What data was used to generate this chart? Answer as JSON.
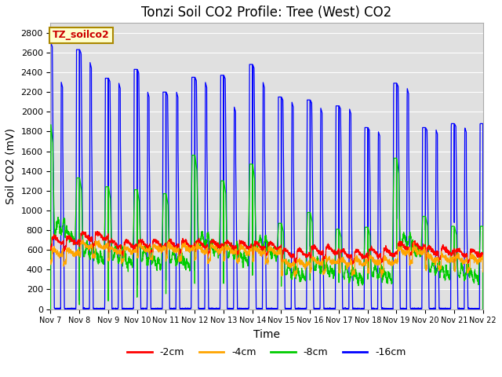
{
  "title": "Tonzi Soil CO2 Profile: Tree (West) CO2",
  "ylabel": "Soil CO2 (mV)",
  "xlabel": "Time",
  "watermark_text": "TZ_soilco2",
  "legend_labels": [
    "-2cm",
    "-4cm",
    "-8cm",
    "-16cm"
  ],
  "legend_colors": [
    "#ff0000",
    "#ffa500",
    "#00cc00",
    "#0000ff"
  ],
  "ylim": [
    0,
    2900
  ],
  "yticks": [
    0,
    200,
    400,
    600,
    800,
    1000,
    1200,
    1400,
    1600,
    1800,
    2000,
    2200,
    2400,
    2600,
    2800
  ],
  "xtick_labels": [
    "Nov 7",
    "Nov 8",
    "Nov 9",
    "Nov 10",
    "Nov 11",
    "Nov 12",
    "Nov 13",
    "Nov 14",
    "Nov 15",
    "Nov 16",
    "Nov 17",
    "Nov 18",
    "Nov 19",
    "Nov 20",
    "Nov 21",
    "Nov 22"
  ],
  "bg_color": "#e0e0e0",
  "grid_color": "#ffffff",
  "title_fontsize": 12,
  "axis_fontsize": 10,
  "tick_fontsize": 8,
  "blue_peaks": [
    2700,
    2630,
    2340,
    2430,
    2200,
    2350,
    2370,
    2480,
    2150,
    2120,
    2060,
    1840,
    2290,
    1840,
    1880,
    1680
  ],
  "blue_second_peaks": [
    2300,
    2500,
    2290,
    2200,
    2200,
    2300,
    2050,
    2300,
    2100,
    2040,
    2030,
    1800,
    2240,
    1820,
    1840,
    0
  ],
  "green_peaks": [
    1870,
    1330,
    1240,
    1210,
    1170,
    1560,
    1300,
    1470,
    870,
    980,
    810,
    830,
    1530,
    940,
    840,
    0
  ],
  "red_base": [
    700,
    740,
    660,
    660,
    660,
    660,
    650,
    640,
    570,
    600,
    560,
    580,
    640,
    590,
    570,
    550
  ],
  "orange_base": [
    580,
    650,
    600,
    620,
    620,
    610,
    600,
    590,
    470,
    490,
    480,
    490,
    590,
    520,
    510,
    490
  ]
}
